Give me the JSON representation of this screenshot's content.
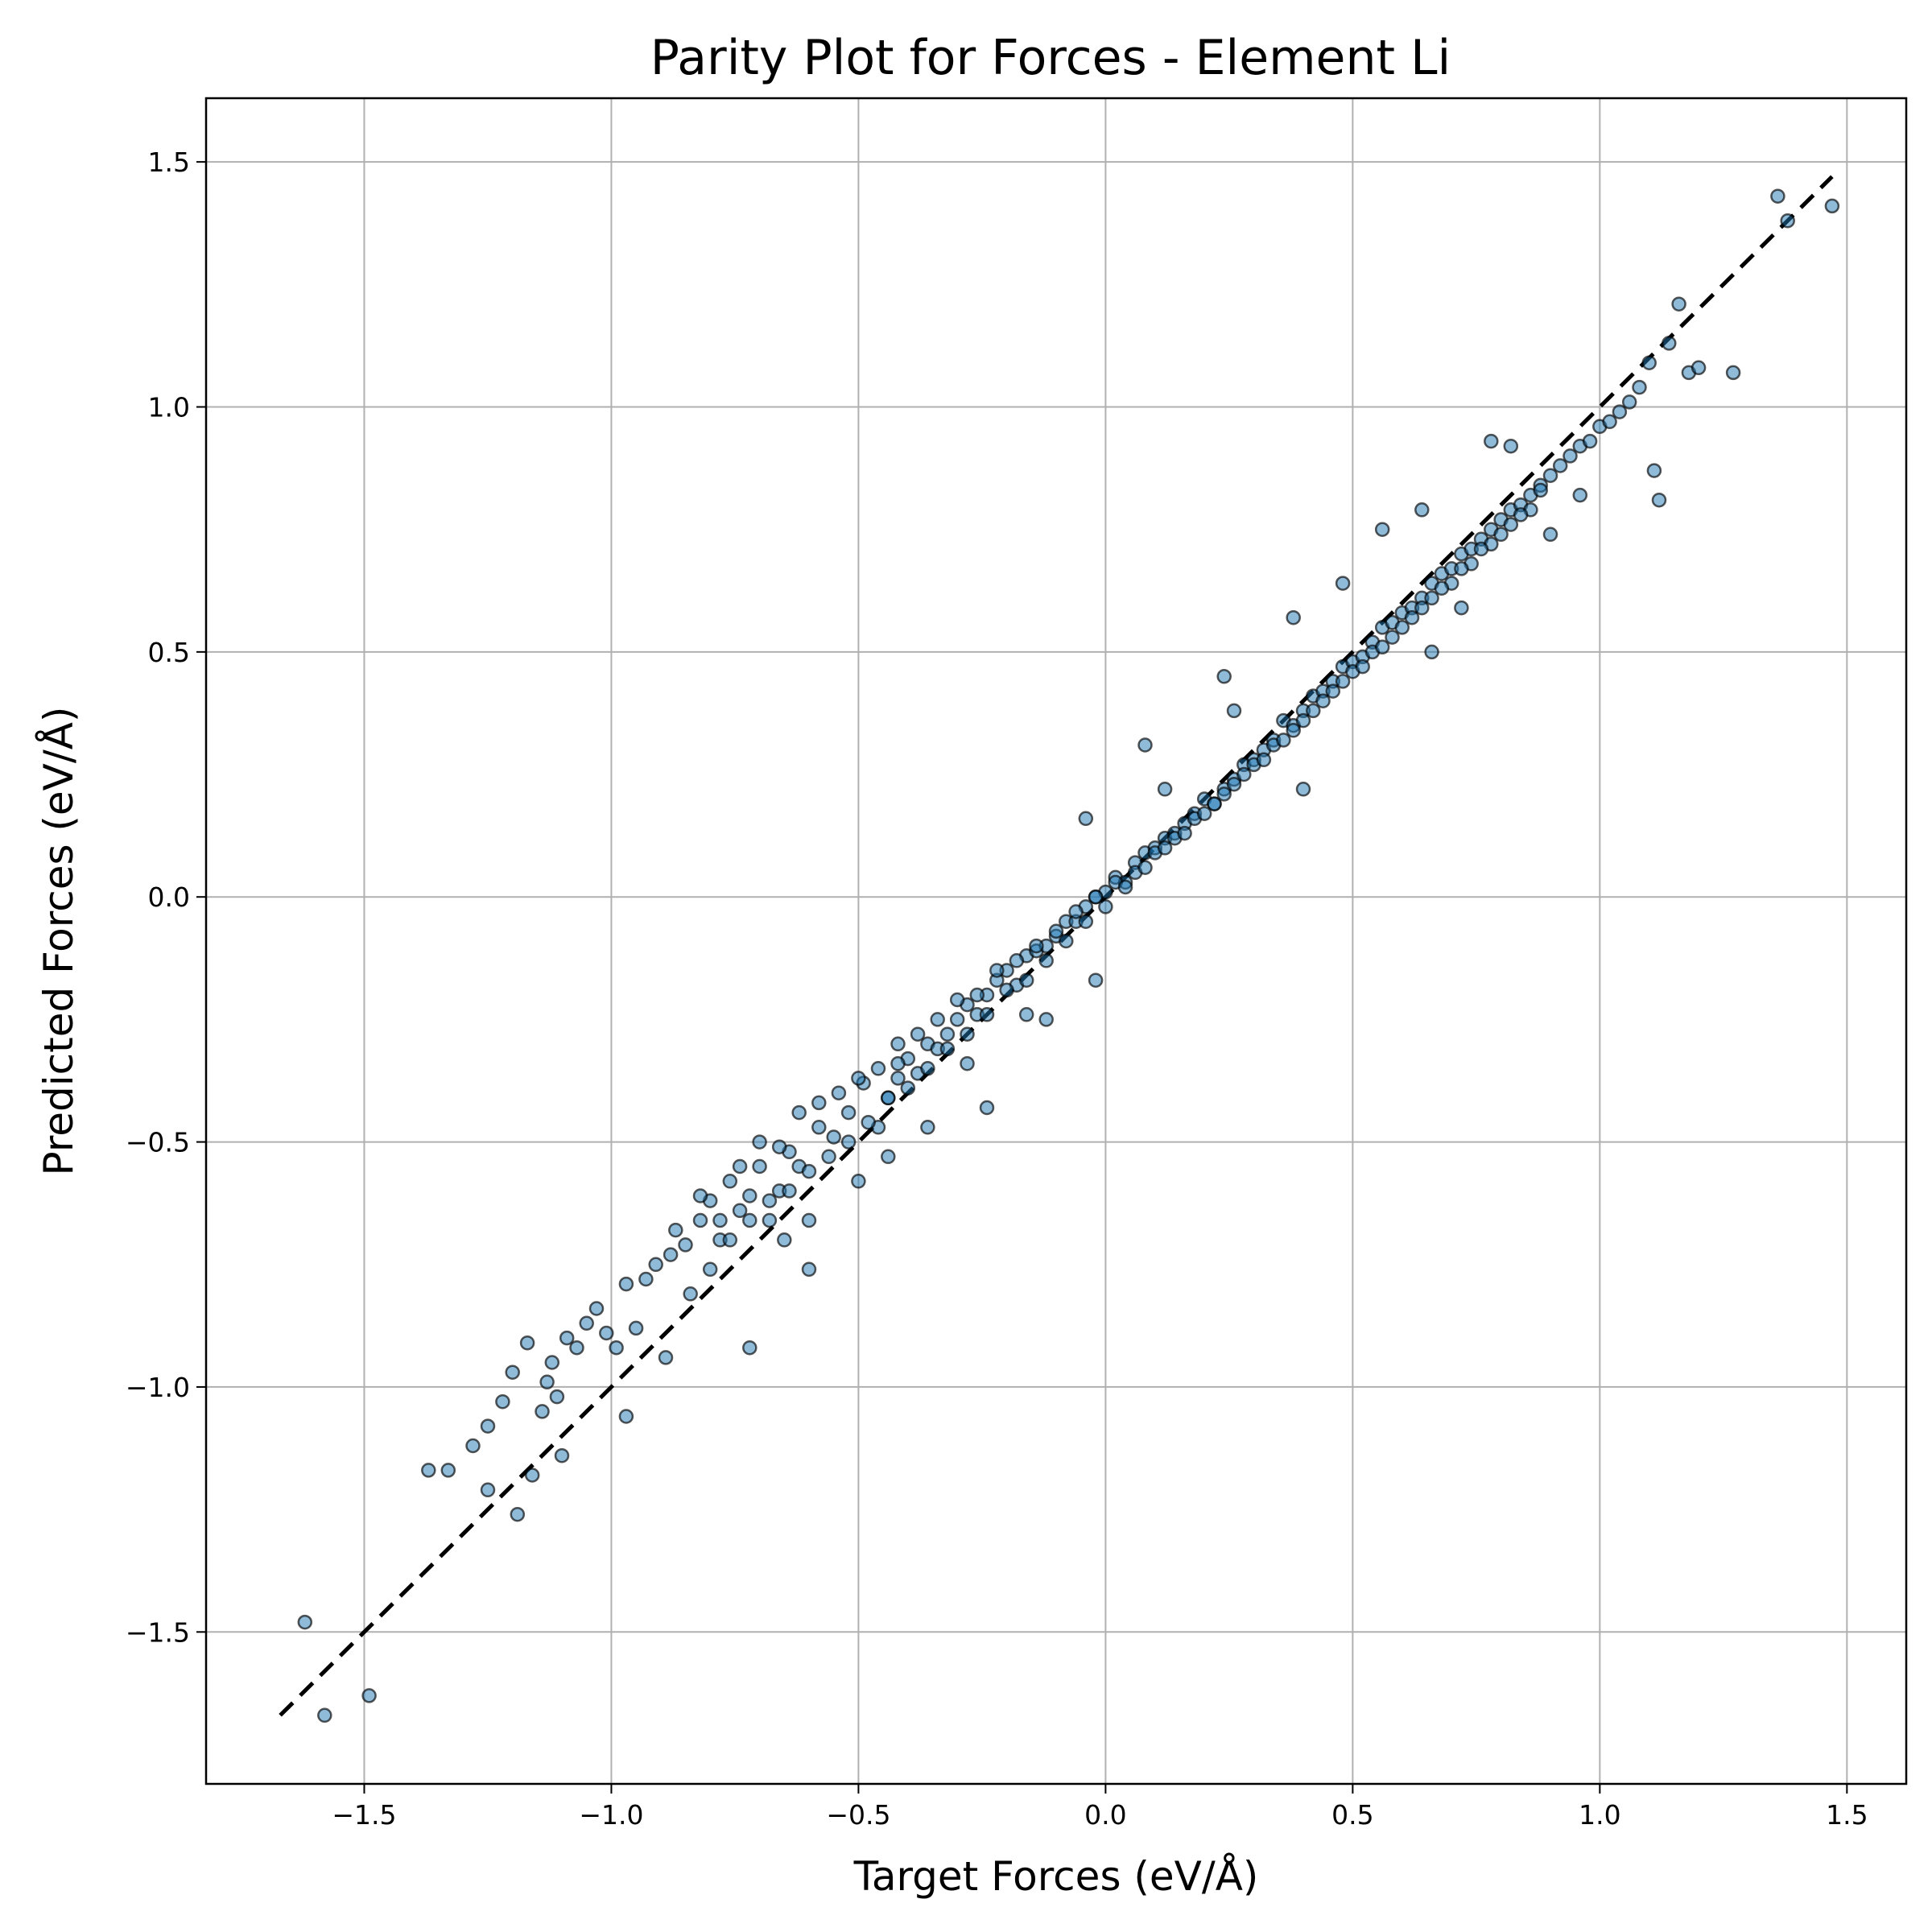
{
  "chart_data": {
    "type": "scatter",
    "title": "Parity Plot for Forces - Element Li",
    "xlabel": "Target Forces (eV/Å)",
    "ylabel": "Predicted Forces (eV/Å)",
    "xlim": [
      -1.82,
      1.62
    ],
    "ylim": [
      -1.81,
      1.63
    ],
    "xticks": [
      -1.5,
      -1.0,
      -0.5,
      0.0,
      0.5,
      1.0,
      1.5
    ],
    "yticks": [
      -1.5,
      -1.0,
      -0.5,
      0.0,
      0.5,
      1.0,
      1.5
    ],
    "xtick_labels": [
      "−1.5",
      "−1.0",
      "−0.5",
      "0.0",
      "0.5",
      "1.0",
      "1.5"
    ],
    "ytick_labels": [
      "−1.5",
      "−1.0",
      "−0.5",
      "0.0",
      "0.5",
      "1.0",
      "1.5"
    ],
    "grid": true,
    "parity_line": {
      "x": [
        -1.67,
        1.47
      ],
      "y": [
        -1.67,
        1.47
      ],
      "style": "dashed",
      "color": "#000000"
    },
    "series": [
      {
        "marker_color": "#1f77b4",
        "marker_alpha": 0.5,
        "marker_edge_color": "#000000",
        "x": [
          -1.62,
          -1.58,
          -1.49,
          -1.37,
          -1.33,
          -1.28,
          -1.25,
          -1.25,
          -1.22,
          -1.2,
          -1.19,
          -1.17,
          -1.16,
          -1.14,
          -1.13,
          -1.12,
          -1.11,
          -1.1,
          -1.09,
          -1.07,
          -1.05,
          -1.03,
          -1.01,
          -0.99,
          -0.97,
          -0.97,
          -0.95,
          -0.93,
          -0.91,
          -0.89,
          -0.87,
          -0.85,
          -0.84,
          -0.82,
          -0.8,
          -0.78,
          -0.76,
          -0.74,
          -0.72,
          -0.7,
          -0.68,
          -0.66,
          -0.64,
          -0.62,
          -0.6,
          -0.58,
          -0.55,
          -0.52,
          -0.49,
          -0.46,
          -0.44,
          -0.42,
          -0.4,
          -0.38,
          -0.36,
          -0.34,
          -0.32,
          -0.3,
          -0.28,
          -0.26,
          -0.24,
          -0.22,
          -0.2,
          -0.18,
          -0.16,
          -0.14,
          -0.12,
          -0.1,
          -0.08,
          -0.06,
          -0.04,
          -0.02,
          0.0,
          0.02,
          0.04,
          0.06,
          0.08,
          0.1,
          0.12,
          0.14,
          0.16,
          0.18,
          0.2,
          0.22,
          0.24,
          0.26,
          0.28,
          0.3,
          0.32,
          0.34,
          0.36,
          0.38,
          0.4,
          0.42,
          0.44,
          0.46,
          0.48,
          0.5,
          0.52,
          0.54,
          0.56,
          0.58,
          0.6,
          0.62,
          0.64,
          0.66,
          0.68,
          0.7,
          0.72,
          0.74,
          0.76,
          0.78,
          0.8,
          0.82,
          0.84,
          0.86,
          0.88,
          0.9,
          0.92,
          0.94,
          0.96,
          0.98,
          1.0,
          1.02,
          1.04,
          1.06,
          1.08,
          1.1,
          1.12,
          1.14,
          1.16,
          1.18,
          1.2,
          1.27,
          1.36,
          1.38,
          1.47,
          -0.82,
          -0.78,
          -0.74,
          -0.7,
          -0.66,
          -0.62,
          -0.58,
          -0.54,
          -0.5,
          -0.46,
          -0.42,
          -0.38,
          -0.34,
          -0.3,
          -0.26,
          -0.22,
          -0.18,
          -0.14,
          -0.1,
          -0.06,
          -0.02,
          0.02,
          0.06,
          0.1,
          0.14,
          0.18,
          0.22,
          0.26,
          0.3,
          0.34,
          0.38,
          0.42,
          0.46,
          0.5,
          0.54,
          0.58,
          0.62,
          0.66,
          0.7,
          0.74,
          0.78,
          0.82,
          0.86,
          -0.8,
          -0.76,
          -0.72,
          -0.68,
          -0.64,
          -0.6,
          -0.56,
          -0.52,
          -0.48,
          -0.44,
          -0.4,
          -0.36,
          -0.32,
          -0.28,
          -0.24,
          -0.2,
          -0.16,
          -0.12,
          -0.08,
          -0.04,
          0.0,
          0.04,
          0.08,
          0.12,
          0.16,
          0.2,
          0.24,
          0.28,
          0.32,
          0.36,
          0.4,
          0.44,
          0.48,
          0.52,
          0.56,
          0.6,
          0.64,
          0.68,
          0.72,
          0.76,
          0.8,
          0.84,
          0.88,
          -0.72,
          -0.6,
          -0.44,
          -0.36,
          -0.24,
          -0.12,
          -0.02,
          0.08,
          0.24,
          0.4,
          0.48,
          0.66,
          0.72,
          0.82,
          0.9,
          -0.88,
          -0.65,
          -0.5,
          -0.42,
          -0.28,
          -0.16,
          -0.04,
          0.12,
          0.26,
          0.38,
          0.56,
          0.64,
          0.78,
          0.96,
          1.11
        ],
        "y": [
          -1.48,
          -1.67,
          -1.63,
          -1.17,
          -1.17,
          -1.12,
          -1.21,
          -1.08,
          -1.03,
          -0.97,
          -1.26,
          -0.91,
          -1.18,
          -1.05,
          -0.99,
          -0.95,
          -1.02,
          -1.14,
          -0.9,
          -0.92,
          -0.87,
          -0.84,
          -0.89,
          -0.92,
          -0.79,
          -1.06,
          -0.88,
          -0.78,
          -0.75,
          -0.94,
          -0.68,
          -0.71,
          -0.81,
          -0.66,
          -0.62,
          -0.7,
          -0.58,
          -0.64,
          -0.61,
          -0.55,
          -0.66,
          -0.6,
          -0.52,
          -0.55,
          -0.66,
          -0.47,
          -0.49,
          -0.44,
          -0.38,
          -0.47,
          -0.41,
          -0.37,
          -0.33,
          -0.36,
          -0.3,
          -0.31,
          -0.28,
          -0.25,
          -0.22,
          -0.24,
          -0.2,
          -0.17,
          -0.15,
          -0.18,
          -0.12,
          -0.11,
          -0.1,
          -0.08,
          -0.05,
          -0.05,
          -0.02,
          0.0,
          0.01,
          0.04,
          0.03,
          0.07,
          0.09,
          0.1,
          0.12,
          0.13,
          0.15,
          0.17,
          0.2,
          0.19,
          0.22,
          0.24,
          0.27,
          0.28,
          0.3,
          0.32,
          0.36,
          0.35,
          0.38,
          0.41,
          0.42,
          0.44,
          0.47,
          0.48,
          0.49,
          0.52,
          0.55,
          0.56,
          0.58,
          0.59,
          0.61,
          0.64,
          0.66,
          0.67,
          0.7,
          0.71,
          0.73,
          0.75,
          0.77,
          0.79,
          0.8,
          0.82,
          0.84,
          0.86,
          0.88,
          0.9,
          0.92,
          0.93,
          0.96,
          0.97,
          0.99,
          1.01,
          1.04,
          1.09,
          0.81,
          1.13,
          1.21,
          1.07,
          1.08,
          1.07,
          1.43,
          1.38,
          1.41,
          -0.61,
          -0.66,
          -0.55,
          -0.5,
          -0.51,
          -0.44,
          -0.42,
          -0.4,
          -0.37,
          -0.35,
          -0.3,
          -0.28,
          -0.25,
          -0.21,
          -0.2,
          -0.15,
          -0.13,
          -0.1,
          -0.07,
          -0.03,
          0.0,
          0.03,
          0.05,
          0.09,
          0.12,
          0.16,
          0.19,
          0.23,
          0.27,
          0.31,
          0.34,
          0.38,
          0.42,
          0.46,
          0.5,
          0.53,
          0.57,
          0.61,
          0.64,
          0.68,
          0.72,
          0.76,
          0.79,
          -0.76,
          -0.7,
          -0.66,
          -0.62,
          -0.6,
          -0.56,
          -0.53,
          -0.5,
          -0.46,
          -0.41,
          -0.39,
          -0.35,
          -0.31,
          -0.28,
          -0.24,
          -0.19,
          -0.17,
          -0.13,
          -0.09,
          -0.05,
          -0.02,
          0.02,
          0.06,
          0.1,
          0.13,
          0.17,
          0.21,
          0.25,
          0.28,
          0.32,
          0.36,
          0.4,
          0.44,
          0.47,
          0.51,
          0.55,
          0.59,
          0.63,
          0.67,
          0.71,
          0.74,
          0.78,
          0.83,
          -0.92,
          -0.76,
          -0.53,
          -0.47,
          -0.43,
          -0.25,
          -0.17,
          0.31,
          0.45,
          0.22,
          0.64,
          0.5,
          0.59,
          0.92,
          0.74,
          -0.73,
          -0.7,
          -0.58,
          -0.34,
          -0.34,
          -0.24,
          0.16,
          0.22,
          0.38,
          0.57,
          0.75,
          0.79,
          0.93,
          0.82,
          0.87
        ]
      }
    ]
  }
}
